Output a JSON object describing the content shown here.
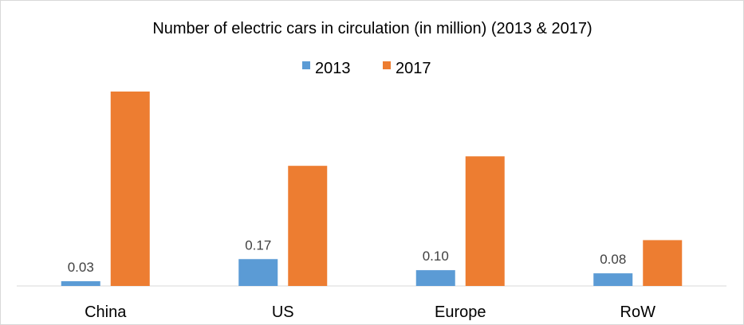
{
  "chart_data": {
    "type": "bar",
    "title": "Number of electric cars in circulation (in million) (2013 & 2017)",
    "xlabel": "",
    "ylabel": "",
    "categories": [
      "China",
      "US",
      "Europe",
      "RoW"
    ],
    "series": [
      {
        "name": "2013",
        "color": "#5b9bd5",
        "values": [
          0.03,
          0.17,
          0.1,
          0.08
        ],
        "value_labels": [
          "0.03",
          "0.17",
          "0.10",
          "0.08"
        ]
      },
      {
        "name": "2017",
        "color": "#ed7d31",
        "values": [
          1.23,
          0.76,
          0.82,
          0.29
        ]
      }
    ],
    "ylim": [
      0,
      1.3
    ],
    "grid": false,
    "legend_position": "top-center"
  },
  "colors": {
    "axis": "#d9d9d9",
    "text": "#000000",
    "label": "#404040"
  }
}
